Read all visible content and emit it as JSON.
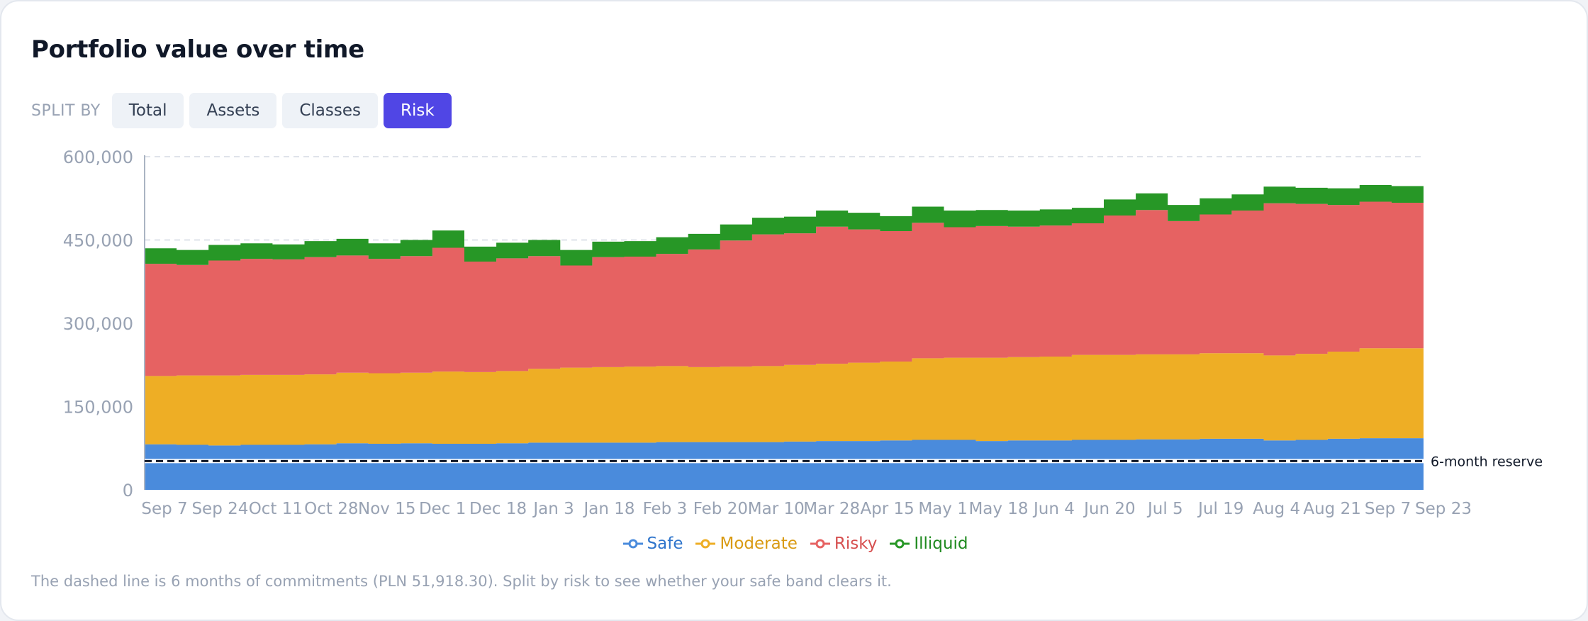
{
  "card": {
    "title": "Portfolio value over time",
    "split_label": "SPLIT BY",
    "split_options": [
      "Total",
      "Assets",
      "Classes",
      "Risk"
    ],
    "split_active": "Risk",
    "note": "The dashed line is 6 months of commitments (PLN 51,918.30). Split by risk to see whether your safe band clears it."
  },
  "chart_data": {
    "type": "area",
    "stacked": true,
    "step": true,
    "title": "Portfolio value over time",
    "xlabel": "",
    "ylabel": "",
    "ylim": [
      0,
      600000
    ],
    "yticks": [
      0,
      150000,
      300000,
      450000,
      600000
    ],
    "ytick_labels": [
      "0",
      "150,000",
      "300,000",
      "450,000",
      "600,000"
    ],
    "xtick_labels": [
      "Sep 7",
      "Sep 24",
      "Oct 11",
      "Oct 28",
      "Nov 15",
      "Dec 1",
      "Dec 18",
      "Jan 3",
      "Jan 18",
      "Feb 3",
      "Feb 20",
      "Mar 10",
      "Mar 28",
      "Apr 15",
      "May 1",
      "May 18",
      "Jun 4",
      "Jun 20",
      "Jul 5",
      "Jul 19",
      "Aug 4",
      "Aug 21",
      "Sep 7",
      "Sep 23"
    ],
    "grid": "horizontal dashed",
    "legend_position": "bottom-center",
    "series": [
      {
        "name": "Safe",
        "color": "#4a8bdc",
        "values": [
          82000,
          81000,
          80000,
          81000,
          81000,
          82000,
          84000,
          83000,
          84000,
          83000,
          83000,
          84000,
          85000,
          85000,
          85000,
          85000,
          86000,
          86000,
          86000,
          86000,
          87000,
          88000,
          88000,
          89000,
          90000,
          90000,
          88000,
          89000,
          89000,
          90000,
          90000,
          91000,
          91000,
          92000,
          92000,
          89000,
          90000,
          92000,
          93000,
          93000
        ]
      },
      {
        "name": "Moderate",
        "color": "#eeae25",
        "values": [
          123000,
          125000,
          126000,
          126000,
          126000,
          126000,
          127000,
          127000,
          127000,
          130000,
          129000,
          130000,
          133000,
          135000,
          136000,
          137000,
          137000,
          135000,
          136000,
          137000,
          138000,
          139000,
          141000,
          142000,
          147000,
          148000,
          150000,
          150000,
          151000,
          153000,
          153000,
          153000,
          153000,
          154000,
          154000,
          153000,
          155000,
          157000,
          162000,
          162000
        ]
      },
      {
        "name": "Risky",
        "color": "#e66262",
        "values": [
          202000,
          199000,
          207000,
          209000,
          208000,
          211000,
          211000,
          206000,
          210000,
          223000,
          199000,
          203000,
          203000,
          184000,
          198000,
          198000,
          202000,
          212000,
          227000,
          237000,
          237000,
          247000,
          240000,
          235000,
          244000,
          235000,
          237000,
          235000,
          236000,
          237000,
          251000,
          260000,
          240000,
          250000,
          257000,
          274000,
          270000,
          264000,
          264000,
          262000
        ]
      },
      {
        "name": "Illiquid",
        "color": "#279726",
        "values": [
          28000,
          27000,
          28000,
          28000,
          27000,
          29000,
          30000,
          28000,
          29000,
          31000,
          27000,
          28000,
          29000,
          28000,
          28000,
          28000,
          30000,
          28000,
          29000,
          30000,
          30000,
          29000,
          30000,
          27000,
          29000,
          30000,
          29000,
          29000,
          29000,
          28000,
          29000,
          30000,
          29000,
          29000,
          29000,
          30000,
          29000,
          30000,
          30000,
          30000
        ]
      }
    ],
    "reference_line": {
      "value": 51918.3,
      "label": "6-month reserve",
      "style": "dashed"
    }
  }
}
